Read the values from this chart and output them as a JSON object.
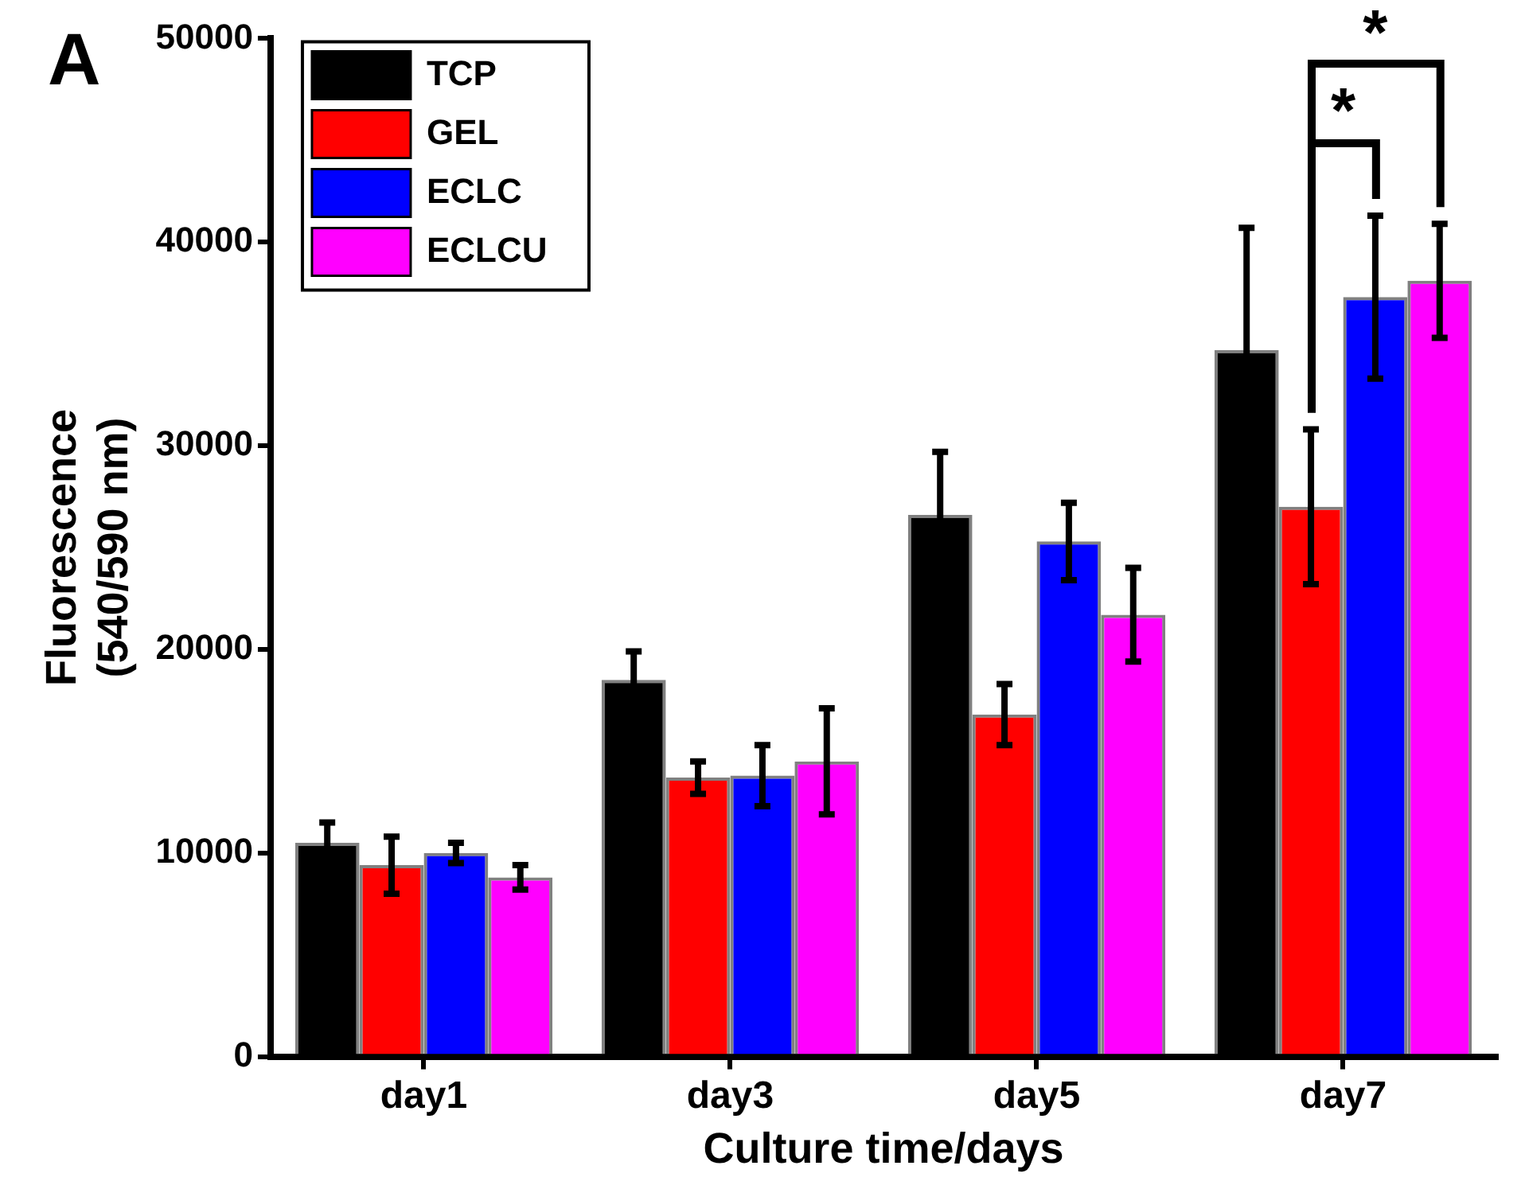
{
  "chart_data": {
    "type": "bar",
    "xlabel": "Culture time/days",
    "ylabel": "Fluorescence\n(540/590 nm)",
    "categories": [
      "day1",
      "day3",
      "day5",
      "day7"
    ],
    "series": [
      {
        "name": "TCP",
        "color": "#000000",
        "values": [
          10500,
          18500,
          26600,
          34700
        ],
        "errors": [
          1000,
          1400,
          3100,
          6000
        ]
      },
      {
        "name": "GEL",
        "color": "#ff0000",
        "values": [
          9400,
          13700,
          16800,
          27000
        ],
        "errors": [
          1400,
          800,
          1500,
          3800
        ]
      },
      {
        "name": "ECLC",
        "color": "#0000ff",
        "values": [
          10000,
          13800,
          25300,
          37300
        ],
        "errors": [
          500,
          1500,
          1900,
          4000
        ]
      },
      {
        "name": "ECLCU",
        "color": "#ff00ff",
        "values": [
          8800,
          14500,
          21700,
          38100
        ],
        "errors": [
          600,
          2600,
          2300,
          2800
        ]
      }
    ],
    "ylim": [
      0,
      50000
    ],
    "yticks": [
      0,
      10000,
      20000,
      30000,
      40000,
      50000
    ],
    "grid": false,
    "legend": "top left",
    "annotations": [
      "A",
      "*",
      "*"
    ]
  }
}
